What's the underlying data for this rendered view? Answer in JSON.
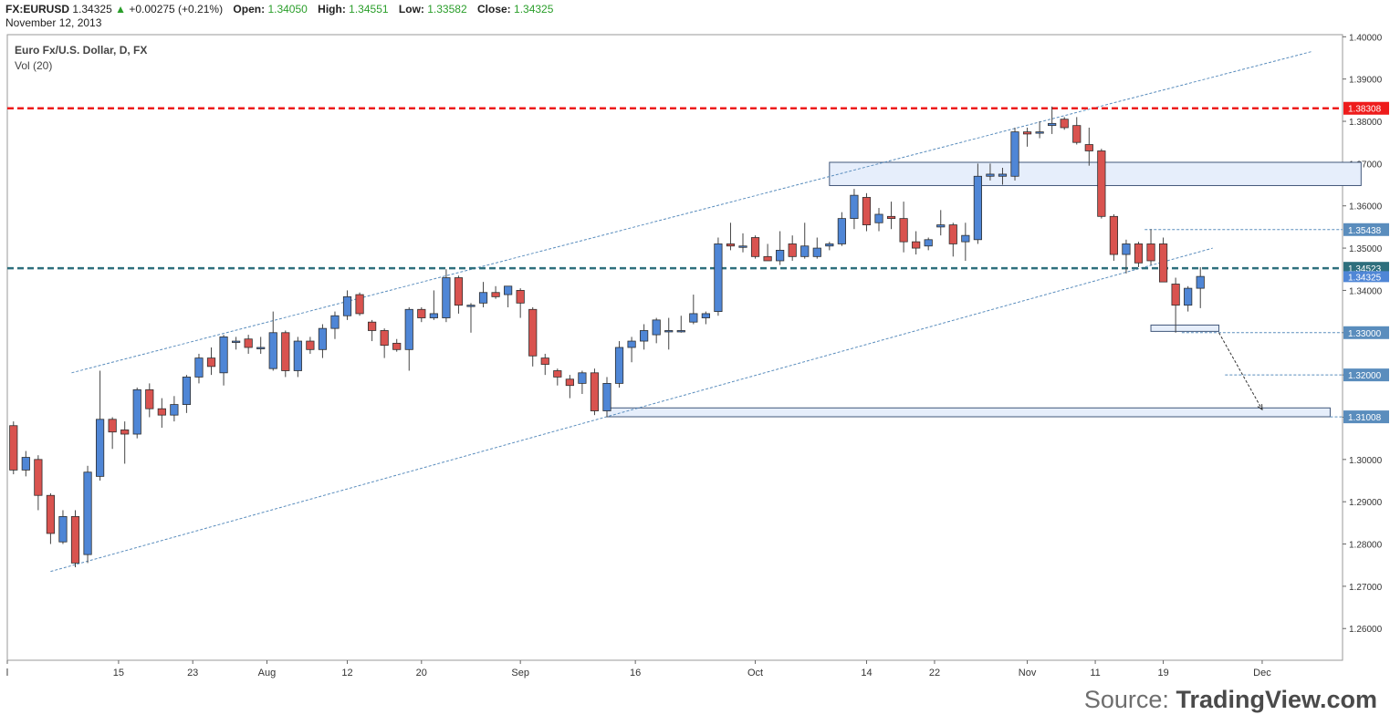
{
  "header": {
    "symbol": "FX:EURUSD",
    "last": "1.34325",
    "change": "+0.00275 (+0.21%)",
    "open_label": "Open:",
    "open": "1.34050",
    "high_label": "High:",
    "high": "1.34551",
    "low_label": "Low:",
    "low": "1.33582",
    "close_label": "Close:",
    "close": "1.34325",
    "date": "November 12, 2013"
  },
  "chart_title": "Euro Fx/U.S. Dollar, D, FX",
  "volume_label": "Vol (20)",
  "source": {
    "prefix": "Source:",
    "brand": "TradingView.com"
  },
  "colors": {
    "up": "#4f86d6",
    "down": "#d9534f",
    "resistance": "#ee1c1c",
    "support": "#2e6f7d",
    "trendline": "#5a8dbd",
    "zone_fill": "#e6eefb"
  },
  "chart_data": {
    "type": "candlestick",
    "title": "Euro Fx/U.S. Dollar, D, FX",
    "ylim": [
      1.2525,
      1.4005
    ],
    "xlim": [
      0,
      108
    ],
    "y_ticks": [
      "1.26000",
      "1.27000",
      "1.28000",
      "1.29000",
      "1.30000",
      "1.31000",
      "1.32000",
      "1.33000",
      "1.34000",
      "1.35000",
      "1.36000",
      "1.37000",
      "1.38000",
      "1.39000",
      "1.40000"
    ],
    "x_ticks": [
      {
        "label": "l",
        "x": 0
      },
      {
        "label": "15",
        "x": 9
      },
      {
        "label": "23",
        "x": 15
      },
      {
        "label": "Aug",
        "x": 21
      },
      {
        "label": "12",
        "x": 27.5
      },
      {
        "label": "20",
        "x": 33.5
      },
      {
        "label": "Sep",
        "x": 41.5
      },
      {
        "label": "16",
        "x": 50.8
      },
      {
        "label": "Oct",
        "x": 60.5
      },
      {
        "label": "14",
        "x": 69.5
      },
      {
        "label": "22",
        "x": 75
      },
      {
        "label": "Nov",
        "x": 82.5
      },
      {
        "label": "11",
        "x": 88
      },
      {
        "label": "19",
        "x": 93.5
      },
      {
        "label": "Dec",
        "x": 101.5
      }
    ],
    "candles": [
      {
        "x": 0.5,
        "o": 1.308,
        "h": 1.309,
        "l": 1.2965,
        "c": 1.2975
      },
      {
        "x": 1.5,
        "o": 1.2975,
        "h": 1.302,
        "l": 1.296,
        "c": 1.3005
      },
      {
        "x": 2.5,
        "o": 1.3,
        "h": 1.301,
        "l": 1.288,
        "c": 1.2915
      },
      {
        "x": 3.5,
        "o": 1.2915,
        "h": 1.292,
        "l": 1.28,
        "c": 1.2825
      },
      {
        "x": 4.5,
        "o": 1.2805,
        "h": 1.288,
        "l": 1.28,
        "c": 1.2865
      },
      {
        "x": 5.5,
        "o": 1.2865,
        "h": 1.288,
        "l": 1.2745,
        "c": 1.2755
      },
      {
        "x": 6.5,
        "o": 1.2775,
        "h": 1.2985,
        "l": 1.2755,
        "c": 1.297
      },
      {
        "x": 7.5,
        "o": 1.296,
        "h": 1.321,
        "l": 1.295,
        "c": 1.3095
      },
      {
        "x": 8.5,
        "o": 1.3095,
        "h": 1.31,
        "l": 1.3025,
        "c": 1.3065
      },
      {
        "x": 9.5,
        "o": 1.307,
        "h": 1.309,
        "l": 1.299,
        "c": 1.306
      },
      {
        "x": 10.5,
        "o": 1.306,
        "h": 1.317,
        "l": 1.305,
        "c": 1.3165
      },
      {
        "x": 11.5,
        "o": 1.3165,
        "h": 1.318,
        "l": 1.31,
        "c": 1.312
      },
      {
        "x": 12.5,
        "o": 1.312,
        "h": 1.3145,
        "l": 1.3075,
        "c": 1.3105
      },
      {
        "x": 13.5,
        "o": 1.3105,
        "h": 1.315,
        "l": 1.309,
        "c": 1.313
      },
      {
        "x": 14.5,
        "o": 1.313,
        "h": 1.32,
        "l": 1.311,
        "c": 1.3195
      },
      {
        "x": 15.5,
        "o": 1.3195,
        "h": 1.325,
        "l": 1.318,
        "c": 1.324
      },
      {
        "x": 16.5,
        "o": 1.324,
        "h": 1.3265,
        "l": 1.32,
        "c": 1.322
      },
      {
        "x": 17.5,
        "o": 1.3205,
        "h": 1.3295,
        "l": 1.3175,
        "c": 1.329
      },
      {
        "x": 18.5,
        "o": 1.328,
        "h": 1.329,
        "l": 1.326,
        "c": 1.328
      },
      {
        "x": 19.5,
        "o": 1.3285,
        "h": 1.3295,
        "l": 1.325,
        "c": 1.3265
      },
      {
        "x": 20.5,
        "o": 1.3265,
        "h": 1.329,
        "l": 1.325,
        "c": 1.3265
      },
      {
        "x": 21.5,
        "o": 1.3215,
        "h": 1.335,
        "l": 1.321,
        "c": 1.33
      },
      {
        "x": 22.5,
        "o": 1.33,
        "h": 1.3305,
        "l": 1.3195,
        "c": 1.321
      },
      {
        "x": 23.5,
        "o": 1.321,
        "h": 1.329,
        "l": 1.3195,
        "c": 1.328
      },
      {
        "x": 24.5,
        "o": 1.328,
        "h": 1.329,
        "l": 1.325,
        "c": 1.326
      },
      {
        "x": 25.5,
        "o": 1.326,
        "h": 1.332,
        "l": 1.324,
        "c": 1.331
      },
      {
        "x": 26.5,
        "o": 1.331,
        "h": 1.335,
        "l": 1.3285,
        "c": 1.334
      },
      {
        "x": 27.5,
        "o": 1.334,
        "h": 1.34,
        "l": 1.333,
        "c": 1.3385
      },
      {
        "x": 28.5,
        "o": 1.339,
        "h": 1.3395,
        "l": 1.334,
        "c": 1.3345
      },
      {
        "x": 29.5,
        "o": 1.3325,
        "h": 1.333,
        "l": 1.328,
        "c": 1.3305
      },
      {
        "x": 30.5,
        "o": 1.3305,
        "h": 1.331,
        "l": 1.324,
        "c": 1.327
      },
      {
        "x": 31.5,
        "o": 1.3275,
        "h": 1.3285,
        "l": 1.3255,
        "c": 1.326
      },
      {
        "x": 32.5,
        "o": 1.326,
        "h": 1.336,
        "l": 1.321,
        "c": 1.3355
      },
      {
        "x": 33.5,
        "o": 1.3355,
        "h": 1.336,
        "l": 1.3325,
        "c": 1.3335
      },
      {
        "x": 34.5,
        "o": 1.3335,
        "h": 1.34,
        "l": 1.333,
        "c": 1.3345
      },
      {
        "x": 35.5,
        "o": 1.3335,
        "h": 1.345,
        "l": 1.3325,
        "c": 1.343
      },
      {
        "x": 36.5,
        "o": 1.343,
        "h": 1.3435,
        "l": 1.3345,
        "c": 1.3365
      },
      {
        "x": 37.5,
        "o": 1.3365,
        "h": 1.337,
        "l": 1.33,
        "c": 1.3365
      },
      {
        "x": 38.5,
        "o": 1.337,
        "h": 1.342,
        "l": 1.336,
        "c": 1.3395
      },
      {
        "x": 39.5,
        "o": 1.3395,
        "h": 1.341,
        "l": 1.338,
        "c": 1.3385
      },
      {
        "x": 40.5,
        "o": 1.339,
        "h": 1.341,
        "l": 1.336,
        "c": 1.341
      },
      {
        "x": 41.5,
        "o": 1.34,
        "h": 1.3405,
        "l": 1.3335,
        "c": 1.337
      },
      {
        "x": 42.5,
        "o": 1.3355,
        "h": 1.336,
        "l": 1.322,
        "c": 1.3245
      },
      {
        "x": 43.5,
        "o": 1.324,
        "h": 1.325,
        "l": 1.32,
        "c": 1.3225
      },
      {
        "x": 44.5,
        "o": 1.321,
        "h": 1.3215,
        "l": 1.3175,
        "c": 1.3195
      },
      {
        "x": 45.5,
        "o": 1.319,
        "h": 1.32,
        "l": 1.3145,
        "c": 1.3175
      },
      {
        "x": 46.5,
        "o": 1.318,
        "h": 1.321,
        "l": 1.3155,
        "c": 1.3205
      },
      {
        "x": 47.5,
        "o": 1.3205,
        "h": 1.3215,
        "l": 1.3105,
        "c": 1.3115
      },
      {
        "x": 48.5,
        "o": 1.3115,
        "h": 1.3195,
        "l": 1.31,
        "c": 1.318
      },
      {
        "x": 49.5,
        "o": 1.318,
        "h": 1.328,
        "l": 1.317,
        "c": 1.3265
      },
      {
        "x": 50.5,
        "o": 1.3265,
        "h": 1.329,
        "l": 1.323,
        "c": 1.328
      },
      {
        "x": 51.5,
        "o": 1.328,
        "h": 1.332,
        "l": 1.326,
        "c": 1.3305
      },
      {
        "x": 52.5,
        "o": 1.3295,
        "h": 1.3335,
        "l": 1.3275,
        "c": 1.333
      },
      {
        "x": 53.5,
        "o": 1.3305,
        "h": 1.3335,
        "l": 1.326,
        "c": 1.3305
      },
      {
        "x": 54.5,
        "o": 1.3305,
        "h": 1.334,
        "l": 1.33,
        "c": 1.3305
      },
      {
        "x": 55.5,
        "o": 1.3325,
        "h": 1.339,
        "l": 1.332,
        "c": 1.3345
      },
      {
        "x": 56.5,
        "o": 1.3335,
        "h": 1.335,
        "l": 1.332,
        "c": 1.3345
      },
      {
        "x": 57.5,
        "o": 1.335,
        "h": 1.3525,
        "l": 1.334,
        "c": 1.351
      },
      {
        "x": 58.5,
        "o": 1.351,
        "h": 1.356,
        "l": 1.3495,
        "c": 1.3505
      },
      {
        "x": 59.5,
        "o": 1.3505,
        "h": 1.3535,
        "l": 1.349,
        "c": 1.3505
      },
      {
        "x": 60.5,
        "o": 1.3525,
        "h": 1.353,
        "l": 1.3475,
        "c": 1.348
      },
      {
        "x": 61.5,
        "o": 1.348,
        "h": 1.351,
        "l": 1.347,
        "c": 1.347
      },
      {
        "x": 62.5,
        "o": 1.347,
        "h": 1.354,
        "l": 1.346,
        "c": 1.3495
      },
      {
        "x": 63.5,
        "o": 1.351,
        "h": 1.353,
        "l": 1.347,
        "c": 1.348
      },
      {
        "x": 64.5,
        "o": 1.348,
        "h": 1.356,
        "l": 1.3475,
        "c": 1.3505
      },
      {
        "x": 65.5,
        "o": 1.348,
        "h": 1.3525,
        "l": 1.3475,
        "c": 1.35
      },
      {
        "x": 66.5,
        "o": 1.3505,
        "h": 1.3515,
        "l": 1.3495,
        "c": 1.351
      },
      {
        "x": 67.5,
        "o": 1.351,
        "h": 1.3585,
        "l": 1.3505,
        "c": 1.357
      },
      {
        "x": 68.5,
        "o": 1.357,
        "h": 1.364,
        "l": 1.3545,
        "c": 1.3625
      },
      {
        "x": 69.5,
        "o": 1.362,
        "h": 1.363,
        "l": 1.354,
        "c": 1.3555
      },
      {
        "x": 70.5,
        "o": 1.356,
        "h": 1.3595,
        "l": 1.354,
        "c": 1.358
      },
      {
        "x": 71.5,
        "o": 1.3575,
        "h": 1.361,
        "l": 1.3545,
        "c": 1.357
      },
      {
        "x": 72.5,
        "o": 1.357,
        "h": 1.361,
        "l": 1.349,
        "c": 1.3515
      },
      {
        "x": 73.5,
        "o": 1.3515,
        "h": 1.354,
        "l": 1.3485,
        "c": 1.35
      },
      {
        "x": 74.5,
        "o": 1.3505,
        "h": 1.3525,
        "l": 1.3495,
        "c": 1.352
      },
      {
        "x": 75.5,
        "o": 1.355,
        "h": 1.359,
        "l": 1.353,
        "c": 1.3555
      },
      {
        "x": 76.5,
        "o": 1.3555,
        "h": 1.356,
        "l": 1.348,
        "c": 1.351
      },
      {
        "x": 77.5,
        "o": 1.3515,
        "h": 1.356,
        "l": 1.347,
        "c": 1.353
      },
      {
        "x": 78.5,
        "o": 1.352,
        "h": 1.37,
        "l": 1.351,
        "c": 1.367
      },
      {
        "x": 79.5,
        "o": 1.367,
        "h": 1.37,
        "l": 1.366,
        "c": 1.3675
      },
      {
        "x": 80.5,
        "o": 1.367,
        "h": 1.369,
        "l": 1.365,
        "c": 1.3675
      },
      {
        "x": 81.5,
        "o": 1.367,
        "h": 1.3785,
        "l": 1.366,
        "c": 1.3775
      },
      {
        "x": 82.5,
        "o": 1.3775,
        "h": 1.3785,
        "l": 1.374,
        "c": 1.377
      },
      {
        "x": 83.5,
        "o": 1.3775,
        "h": 1.38,
        "l": 1.376,
        "c": 1.3775
      },
      {
        "x": 84.5,
        "o": 1.379,
        "h": 1.3835,
        "l": 1.377,
        "c": 1.3795
      },
      {
        "x": 85.5,
        "o": 1.3805,
        "h": 1.381,
        "l": 1.378,
        "c": 1.3785
      },
      {
        "x": 86.5,
        "o": 1.379,
        "h": 1.381,
        "l": 1.3745,
        "c": 1.375
      },
      {
        "x": 87.5,
        "o": 1.3745,
        "h": 1.3785,
        "l": 1.3695,
        "c": 1.373
      },
      {
        "x": 88.5,
        "o": 1.373,
        "h": 1.3735,
        "l": 1.357,
        "c": 1.3575
      },
      {
        "x": 89.5,
        "o": 1.3575,
        "h": 1.358,
        "l": 1.347,
        "c": 1.3485
      },
      {
        "x": 90.5,
        "o": 1.3485,
        "h": 1.352,
        "l": 1.344,
        "c": 1.351
      },
      {
        "x": 91.5,
        "o": 1.351,
        "h": 1.3515,
        "l": 1.3455,
        "c": 1.3465
      },
      {
        "x": 92.5,
        "o": 1.351,
        "h": 1.3545,
        "l": 1.346,
        "c": 1.347
      },
      {
        "x": 93.5,
        "o": 1.351,
        "h": 1.3525,
        "l": 1.342,
        "c": 1.342
      },
      {
        "x": 94.5,
        "o": 1.3415,
        "h": 1.343,
        "l": 1.33,
        "c": 1.3365
      },
      {
        "x": 95.5,
        "o": 1.3365,
        "h": 1.341,
        "l": 1.335,
        "c": 1.3405
      },
      {
        "x": 96.5,
        "o": 1.3405,
        "h": 1.3455,
        "l": 1.3358,
        "c": 1.3433
      }
    ],
    "trendlines": [
      {
        "x1": 3.5,
        "y1": 1.2735,
        "x2": 97.5,
        "y2": 1.35
      },
      {
        "x1": 5.2,
        "y1": 1.3205,
        "x2": 105.5,
        "y2": 1.3965
      }
    ],
    "horizontal_levels": [
      {
        "label": "1.38308",
        "value": 1.38308,
        "color": "#ee1c1c",
        "style": "resistance"
      },
      {
        "label": "1.34523",
        "value": 1.34523,
        "color": "#2e6f7d",
        "style": "support"
      },
      {
        "label": "1.35438",
        "value": 1.35438,
        "color": "#5a8dbd",
        "style": "thin",
        "x_start": 92
      },
      {
        "label": "1.33000",
        "value": 1.33,
        "color": "#5a8dbd",
        "style": "thin",
        "x_start": 95
      },
      {
        "label": "1.32000",
        "value": 1.32,
        "color": "#5a8dbd",
        "style": "thin",
        "x_start": 98.5
      },
      {
        "label": "1.31008",
        "value": 1.31008,
        "color": "#5a8dbd",
        "style": "thin",
        "x_start": 107
      }
    ],
    "zones": [
      {
        "x1": 66.5,
        "x2": 109.5,
        "y1": 1.3648,
        "y2": 1.3703
      },
      {
        "x1": 92.5,
        "x2": 98,
        "y1": 1.3303,
        "y2": 1.3318
      },
      {
        "x1": 48.5,
        "x2": 107,
        "y1": 1.3101,
        "y2": 1.3122
      }
    ],
    "arrow": {
      "x1": 98,
      "y1": 1.33,
      "x2": 101.5,
      "y2": 1.3118
    },
    "last_price_label": "1.34325"
  }
}
